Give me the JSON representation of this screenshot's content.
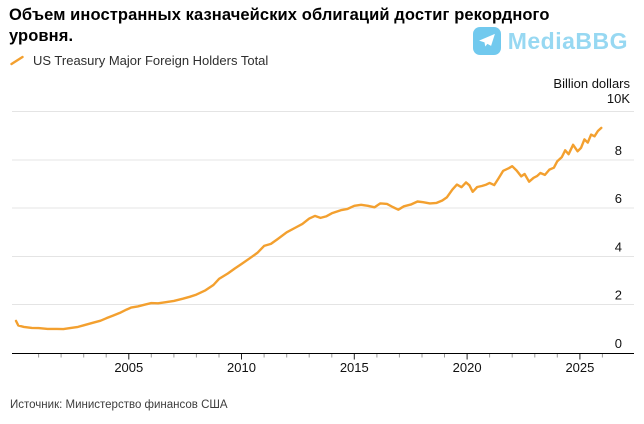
{
  "header": {
    "title_line1": "Объем иностранных казначейских облигаций достиг рекордного",
    "title_line2": "уровня.",
    "watermark": "MediaBBG"
  },
  "legend": {
    "label": "US Treasury Major Foreign Holders Total"
  },
  "footer": {
    "source": "Источник: Министерство финансов США"
  },
  "chart_data": {
    "type": "line",
    "title": "Объем иностранных казначейских облигаций достиг рекордного уровня.",
    "ylabel": "Billion dollars",
    "units": "y values in K (thousands of billion dollars)",
    "xlim": [
      2000,
      2027.4
    ],
    "ylim": [
      0,
      10
    ],
    "xticks": [
      2005,
      2010,
      2015,
      2020,
      2025
    ],
    "minor_xticks": "every year 2001-2026",
    "ytick_values": [
      0,
      2,
      4,
      6,
      8,
      10
    ],
    "ytick_labels": [
      "0",
      "2",
      "4",
      "6",
      "8",
      "10K"
    ],
    "grid": "horizontal",
    "legend_position": "top-left",
    "colors": {
      "line": "#F3A02F",
      "gridline": "#E4E4E4",
      "axis": "#000000",
      "minor_tick": "#999999",
      "major_tick": "#222222",
      "watermark_blue": "#59C0EC"
    },
    "series": [
      {
        "name": "US Treasury Major Foreign Holders Total",
        "color": "#F3A02F",
        "points": [
          [
            2000.0,
            1.33
          ],
          [
            2000.1,
            1.14
          ],
          [
            2000.35,
            1.08
          ],
          [
            2000.7,
            1.04
          ],
          [
            2001.0,
            1.03
          ],
          [
            2001.4,
            1.0
          ],
          [
            2001.8,
            1.0
          ],
          [
            2002.1,
            0.99
          ],
          [
            2002.4,
            1.03
          ],
          [
            2002.75,
            1.08
          ],
          [
            2003.0,
            1.15
          ],
          [
            2003.4,
            1.25
          ],
          [
            2003.75,
            1.34
          ],
          [
            2004.0,
            1.44
          ],
          [
            2004.3,
            1.55
          ],
          [
            2004.6,
            1.66
          ],
          [
            2004.9,
            1.8
          ],
          [
            2005.1,
            1.88
          ],
          [
            2005.4,
            1.93
          ],
          [
            2005.7,
            2.0
          ],
          [
            2006.0,
            2.07
          ],
          [
            2006.3,
            2.06
          ],
          [
            2006.6,
            2.1
          ],
          [
            2007.0,
            2.16
          ],
          [
            2007.4,
            2.25
          ],
          [
            2007.7,
            2.33
          ],
          [
            2008.0,
            2.42
          ],
          [
            2008.4,
            2.6
          ],
          [
            2008.75,
            2.82
          ],
          [
            2009.0,
            3.07
          ],
          [
            2009.4,
            3.3
          ],
          [
            2009.7,
            3.5
          ],
          [
            2010.0,
            3.69
          ],
          [
            2010.4,
            3.95
          ],
          [
            2010.7,
            4.15
          ],
          [
            2011.0,
            4.44
          ],
          [
            2011.3,
            4.52
          ],
          [
            2011.6,
            4.72
          ],
          [
            2012.0,
            5.0
          ],
          [
            2012.4,
            5.2
          ],
          [
            2012.7,
            5.35
          ],
          [
            2013.0,
            5.57
          ],
          [
            2013.25,
            5.68
          ],
          [
            2013.5,
            5.6
          ],
          [
            2013.75,
            5.66
          ],
          [
            2014.0,
            5.79
          ],
          [
            2014.4,
            5.92
          ],
          [
            2014.7,
            5.97
          ],
          [
            2015.0,
            6.1
          ],
          [
            2015.3,
            6.14
          ],
          [
            2015.6,
            6.1
          ],
          [
            2015.9,
            6.04
          ],
          [
            2016.15,
            6.2
          ],
          [
            2016.45,
            6.18
          ],
          [
            2016.7,
            6.05
          ],
          [
            2016.95,
            5.94
          ],
          [
            2017.2,
            6.08
          ],
          [
            2017.5,
            6.15
          ],
          [
            2017.8,
            6.28
          ],
          [
            2018.05,
            6.25
          ],
          [
            2018.35,
            6.2
          ],
          [
            2018.65,
            6.22
          ],
          [
            2018.9,
            6.32
          ],
          [
            2019.1,
            6.45
          ],
          [
            2019.35,
            6.77
          ],
          [
            2019.55,
            6.98
          ],
          [
            2019.75,
            6.87
          ],
          [
            2019.95,
            7.07
          ],
          [
            2020.1,
            6.95
          ],
          [
            2020.25,
            6.68
          ],
          [
            2020.45,
            6.88
          ],
          [
            2020.65,
            6.92
          ],
          [
            2020.85,
            6.98
          ],
          [
            2021.0,
            7.05
          ],
          [
            2021.2,
            6.96
          ],
          [
            2021.4,
            7.25
          ],
          [
            2021.6,
            7.55
          ],
          [
            2021.85,
            7.66
          ],
          [
            2022.0,
            7.74
          ],
          [
            2022.2,
            7.56
          ],
          [
            2022.4,
            7.32
          ],
          [
            2022.55,
            7.42
          ],
          [
            2022.75,
            7.1
          ],
          [
            2022.95,
            7.26
          ],
          [
            2023.1,
            7.33
          ],
          [
            2023.25,
            7.46
          ],
          [
            2023.45,
            7.38
          ],
          [
            2023.65,
            7.6
          ],
          [
            2023.85,
            7.68
          ],
          [
            2024.0,
            7.95
          ],
          [
            2024.2,
            8.12
          ],
          [
            2024.35,
            8.4
          ],
          [
            2024.5,
            8.24
          ],
          [
            2024.7,
            8.63
          ],
          [
            2024.9,
            8.36
          ],
          [
            2025.05,
            8.5
          ],
          [
            2025.2,
            8.85
          ],
          [
            2025.35,
            8.72
          ],
          [
            2025.5,
            9.05
          ],
          [
            2025.65,
            8.98
          ],
          [
            2025.8,
            9.2
          ],
          [
            2025.95,
            9.33
          ]
        ]
      }
    ]
  }
}
